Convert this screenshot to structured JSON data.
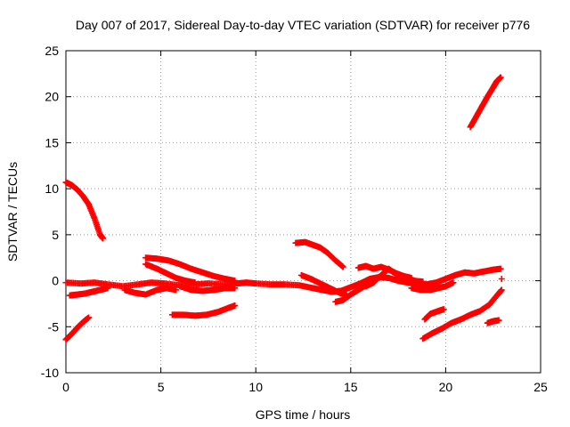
{
  "chart_data": {
    "type": "scatter",
    "title": "Day 007 of 2017, Sidereal Day-to-day VTEC variation (SDTVAR) for receiver p776",
    "xlabel": "GPS time / hours",
    "ylabel": "SDTVAR / TECUs",
    "xlim": [
      0,
      25
    ],
    "ylim": [
      -10,
      25
    ],
    "x_ticks": [
      0,
      5,
      10,
      15,
      20,
      25
    ],
    "y_ticks": [
      -10,
      -5,
      0,
      5,
      10,
      15,
      20,
      25
    ],
    "grid": true,
    "marker": "plus",
    "color": "#ff0000",
    "series": [
      {
        "points": [
          [
            0.0,
            10.7
          ],
          [
            0.3,
            10.4
          ],
          [
            0.6,
            9.9
          ],
          [
            0.9,
            9.2
          ],
          [
            1.2,
            8.3
          ],
          [
            1.5,
            6.8
          ],
          [
            1.8,
            5.0
          ],
          [
            1.95,
            4.6
          ]
        ]
      },
      {
        "points": [
          [
            0.0,
            -6.4
          ],
          [
            0.3,
            -5.8
          ],
          [
            0.6,
            -5.1
          ],
          [
            0.9,
            -4.5
          ],
          [
            1.2,
            -4.0
          ]
        ]
      },
      {
        "points": [
          [
            0.0,
            -0.2
          ],
          [
            0.8,
            -0.3
          ],
          [
            1.5,
            -0.2
          ],
          [
            2.2,
            -0.4
          ],
          [
            3.0,
            -0.6
          ],
          [
            3.8,
            -0.4
          ],
          [
            4.5,
            -0.2
          ],
          [
            5.2,
            -0.3
          ],
          [
            6.0,
            -0.5
          ],
          [
            6.8,
            -0.4
          ],
          [
            7.5,
            -0.3
          ],
          [
            8.3,
            -0.4
          ],
          [
            9.0,
            -0.3
          ],
          [
            9.5,
            -0.2
          ],
          [
            10.0,
            -0.3
          ],
          [
            10.8,
            -0.4
          ],
          [
            11.5,
            -0.4
          ],
          [
            12.3,
            -0.5
          ],
          [
            13.0,
            -0.8
          ],
          [
            13.5,
            -1.0
          ],
          [
            14.0,
            -1.2
          ],
          [
            14.5,
            -1.1
          ],
          [
            15.0,
            -0.7
          ],
          [
            15.5,
            -0.3
          ],
          [
            16.0,
            0.2
          ],
          [
            16.5,
            0.4
          ],
          [
            17.0,
            0.3
          ],
          [
            17.5,
            0.0
          ],
          [
            18.0,
            -0.2
          ],
          [
            18.5,
            -0.3
          ],
          [
            19.0,
            -0.4
          ],
          [
            19.5,
            -0.2
          ],
          [
            20.0,
            0.2
          ],
          [
            20.5,
            0.6
          ],
          [
            21.0,
            0.9
          ],
          [
            21.5,
            0.8
          ],
          [
            22.0,
            1.0
          ],
          [
            22.5,
            1.2
          ],
          [
            22.9,
            1.3
          ]
        ]
      },
      {
        "points": [
          [
            0.2,
            -1.6
          ],
          [
            0.6,
            -1.5
          ],
          [
            1.0,
            -1.4
          ],
          [
            1.4,
            -1.2
          ],
          [
            1.8,
            -1.0
          ],
          [
            2.2,
            -0.8
          ]
        ]
      },
      {
        "points": [
          [
            3.1,
            -1.0
          ],
          [
            3.6,
            -1.3
          ],
          [
            4.2,
            -1.5
          ],
          [
            4.8,
            -1.0
          ],
          [
            5.3,
            -0.8
          ],
          [
            5.8,
            -1.0
          ]
        ]
      },
      {
        "points": [
          [
            4.2,
            1.8
          ],
          [
            4.8,
            1.3
          ],
          [
            5.3,
            0.8
          ],
          [
            5.8,
            0.3
          ],
          [
            6.3,
            0.0
          ],
          [
            6.8,
            -0.2
          ]
        ]
      },
      {
        "points": [
          [
            4.2,
            2.5
          ],
          [
            4.8,
            2.4
          ],
          [
            5.4,
            2.2
          ],
          [
            6.0,
            1.8
          ],
          [
            6.6,
            1.3
          ],
          [
            7.2,
            0.9
          ],
          [
            7.8,
            0.5
          ],
          [
            8.4,
            0.2
          ],
          [
            8.9,
            0.0
          ]
        ]
      },
      {
        "points": [
          [
            6.0,
            -0.6
          ],
          [
            6.6,
            -1.0
          ],
          [
            7.2,
            -1.1
          ],
          [
            7.8,
            -1.0
          ],
          [
            8.4,
            -0.8
          ],
          [
            8.9,
            -0.8
          ]
        ]
      },
      {
        "points": [
          [
            5.6,
            -3.7
          ],
          [
            6.2,
            -3.7
          ],
          [
            6.8,
            -3.8
          ],
          [
            7.4,
            -3.7
          ],
          [
            8.0,
            -3.4
          ],
          [
            8.5,
            -3.0
          ],
          [
            8.9,
            -2.7
          ]
        ]
      },
      {
        "points": [
          [
            12.1,
            4.1
          ],
          [
            12.6,
            4.2
          ],
          [
            13.0,
            3.9
          ],
          [
            13.4,
            3.6
          ],
          [
            13.8,
            3.0
          ],
          [
            14.2,
            2.2
          ],
          [
            14.6,
            1.5
          ]
        ]
      },
      {
        "points": [
          [
            12.4,
            0.6
          ],
          [
            12.9,
            0.2
          ],
          [
            13.4,
            -0.3
          ],
          [
            13.9,
            -0.8
          ],
          [
            14.4,
            -1.3
          ],
          [
            14.8,
            -1.6
          ]
        ]
      },
      {
        "points": [
          [
            14.2,
            -2.3
          ],
          [
            14.6,
            -2.1
          ],
          [
            15.0,
            -1.5
          ],
          [
            15.4,
            -1.0
          ],
          [
            15.8,
            -0.5
          ],
          [
            16.2,
            -0.2
          ]
        ]
      },
      {
        "points": [
          [
            15.4,
            1.4
          ],
          [
            15.8,
            1.6
          ],
          [
            16.2,
            1.3
          ],
          [
            16.6,
            1.5
          ],
          [
            17.0,
            1.2
          ],
          [
            17.4,
            0.8
          ],
          [
            17.8,
            0.5
          ],
          [
            18.2,
            0.3
          ]
        ]
      },
      {
        "points": [
          [
            15.8,
            -0.6
          ],
          [
            16.2,
            -0.2
          ],
          [
            16.6,
            0.6
          ],
          [
            17.0,
            1.3
          ],
          [
            17.4,
            0.7
          ],
          [
            17.8,
            0.2
          ],
          [
            18.3,
            0.0
          ],
          [
            18.8,
            -0.1
          ]
        ]
      },
      {
        "points": [
          [
            18.2,
            -0.8
          ],
          [
            18.7,
            -1.0
          ],
          [
            19.2,
            -1.0
          ],
          [
            19.6,
            -0.8
          ],
          [
            20.0,
            -0.6
          ],
          [
            20.4,
            -0.2
          ]
        ]
      },
      {
        "points": [
          [
            18.8,
            -6.3
          ],
          [
            19.3,
            -5.7
          ],
          [
            19.8,
            -5.2
          ],
          [
            20.3,
            -4.6
          ],
          [
            20.8,
            -4.2
          ],
          [
            21.3,
            -3.7
          ],
          [
            21.8,
            -3.3
          ],
          [
            22.3,
            -2.6
          ],
          [
            22.7,
            -1.6
          ],
          [
            22.95,
            -1.0
          ]
        ]
      },
      {
        "points": [
          [
            18.9,
            -4.2
          ],
          [
            19.2,
            -3.6
          ],
          [
            19.6,
            -3.3
          ],
          [
            19.9,
            -3.1
          ]
        ]
      },
      {
        "points": [
          [
            22.2,
            -4.6
          ],
          [
            22.5,
            -4.4
          ],
          [
            22.8,
            -4.3
          ]
        ]
      },
      {
        "points": [
          [
            21.3,
            16.7
          ],
          [
            21.6,
            17.8
          ],
          [
            21.9,
            18.9
          ],
          [
            22.2,
            20.0
          ],
          [
            22.5,
            21.0
          ],
          [
            22.7,
            21.7
          ],
          [
            22.9,
            22.1
          ]
        ]
      },
      {
        "points": [
          [
            22.95,
            0.2
          ]
        ]
      }
    ]
  }
}
